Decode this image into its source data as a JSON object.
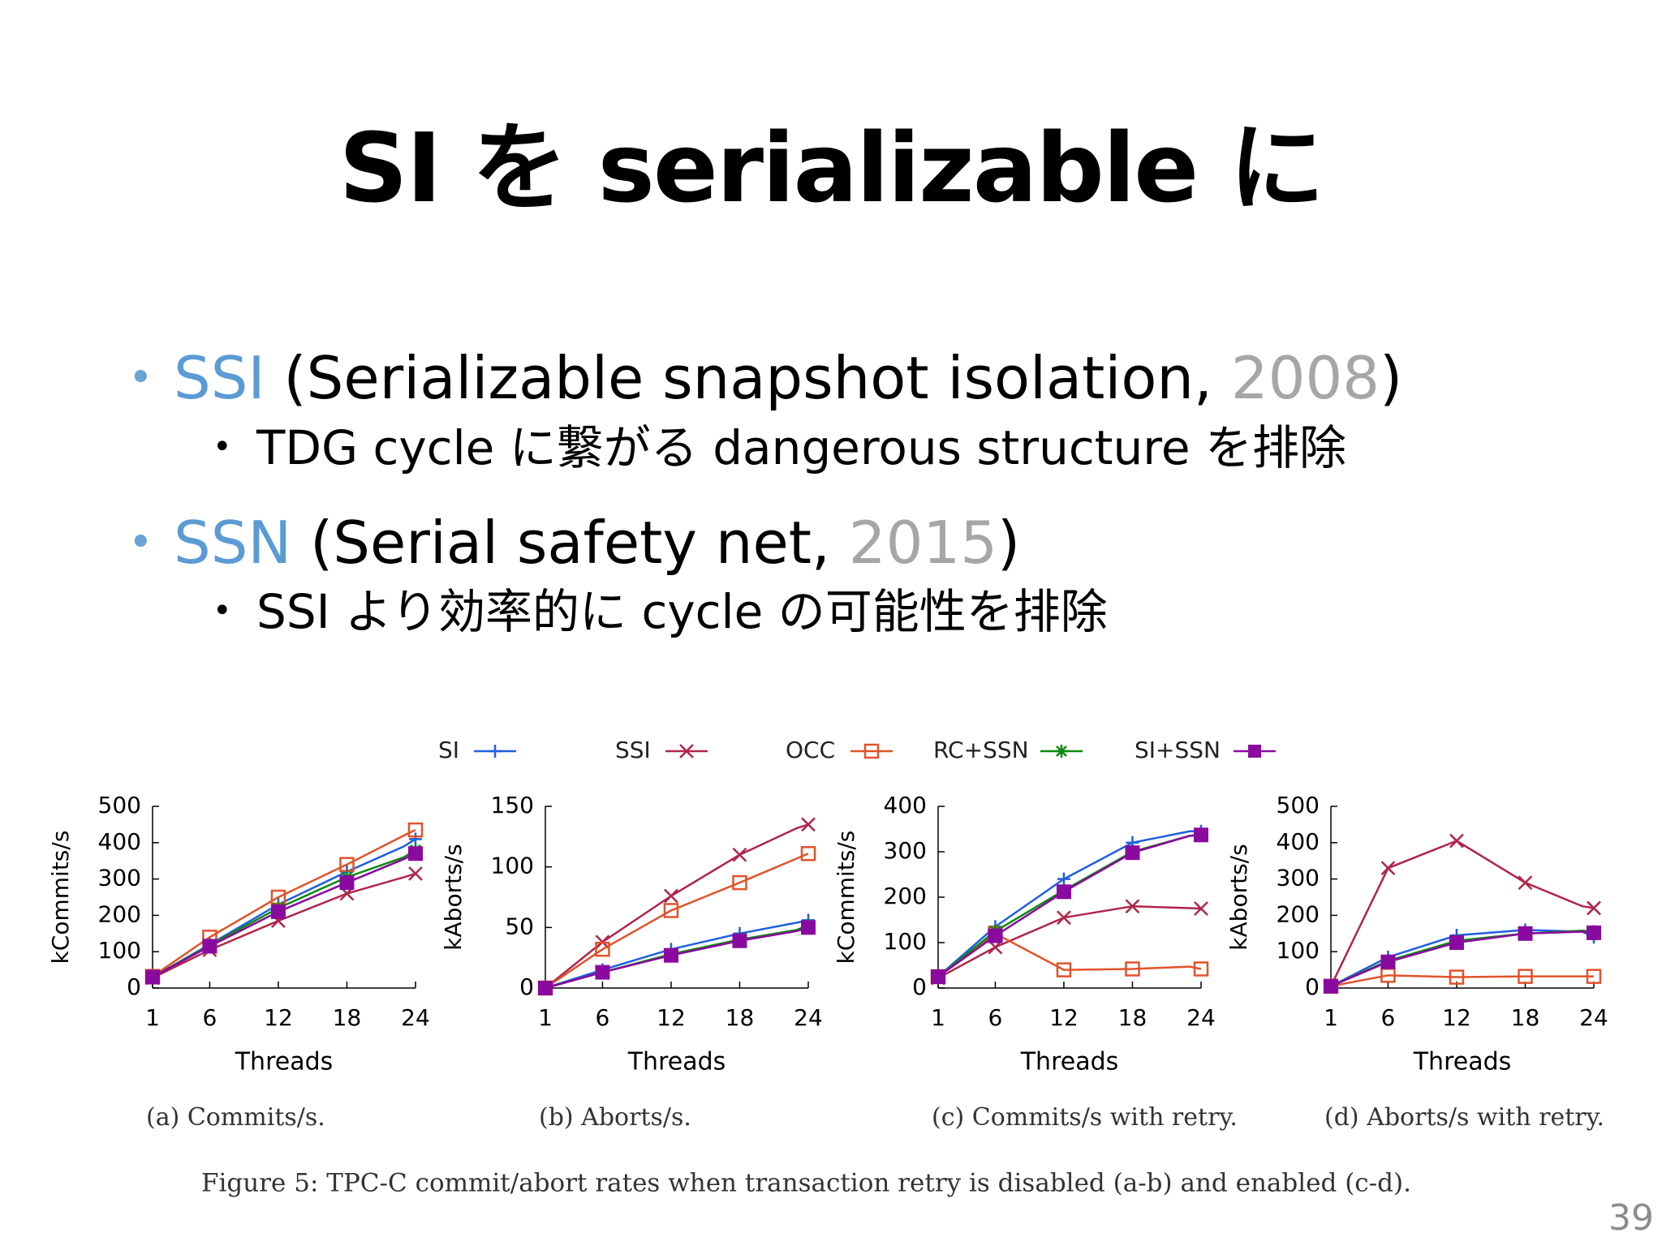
{
  "slide": {
    "title": "SI を serializable に",
    "bullets": [
      {
        "name": "SSI",
        "open": " (Serializable snapshot isolation, ",
        "year": "2008",
        "close": ")",
        "sub": "TDG cycle に繋がる dangerous structure を排除"
      },
      {
        "name": "SSN",
        "open": " (Serial safety net, ",
        "year": "2015",
        "close": ")",
        "sub": "SSI より効率的に cycle の可能性を排除"
      }
    ],
    "page_number": "39"
  },
  "colors": {
    "accent": "#5b9bd5",
    "year_gray": "#a6a6a6",
    "SI": "#1f5fe0",
    "SSI": "#b0264a",
    "OCC": "#e0532a",
    "RC+SSN": "#0b8a0b",
    "SI+SSN": "#8a0aa0"
  },
  "chart_data": {
    "legend": [
      {
        "name": "SI",
        "marker": "plus",
        "color": "#1f5fe0"
      },
      {
        "name": "SSI",
        "marker": "x",
        "color": "#b0264a"
      },
      {
        "name": "OCC",
        "marker": "square-open",
        "color": "#e0532a"
      },
      {
        "name": "RC+SSN",
        "marker": "star",
        "color": "#0b8a0b"
      },
      {
        "name": "SI+SSN",
        "marker": "square-filled",
        "color": "#8a0aa0"
      }
    ],
    "caption": "Figure 5: TPC-C commit/abort rates when transaction retry is disabled (a-b) and enabled (c-d).",
    "panels": [
      {
        "type": "line",
        "subcaption": "(a) Commits/s.",
        "xlabel": "Threads",
        "ylabel": "kCommits/s",
        "xticks": [
          1,
          6,
          12,
          18,
          24
        ],
        "yticks": [
          0,
          100,
          200,
          300,
          400,
          500
        ],
        "xlim": [
          1,
          24
        ],
        "ylim": [
          0,
          500
        ],
        "x": [
          1,
          6,
          12,
          18,
          23,
          24
        ],
        "series": [
          {
            "name": "SI",
            "values": [
              30,
              120,
              230,
              320,
              390,
              410
            ]
          },
          {
            "name": "SSI",
            "values": [
              28,
              105,
              185,
              260,
              305,
              315
            ]
          },
          {
            "name": "OCC",
            "values": [
              32,
              140,
              250,
              340,
              420,
              435
            ]
          },
          {
            "name": "RC+SSN",
            "values": [
              30,
              118,
              220,
              305,
              360,
              380
            ]
          },
          {
            "name": "SI+SSN",
            "values": [
              30,
              115,
              210,
              290,
              355,
              370
            ]
          }
        ]
      },
      {
        "type": "line",
        "subcaption": "(b) Aborts/s.",
        "xlabel": "Threads",
        "ylabel": "kAborts/s",
        "xticks": [
          1,
          6,
          12,
          18,
          24
        ],
        "yticks": [
          0,
          50,
          100,
          150
        ],
        "xlim": [
          1,
          24
        ],
        "ylim": [
          0,
          150
        ],
        "x": [
          1,
          6,
          12,
          18,
          23,
          24
        ],
        "series": [
          {
            "name": "SI",
            "values": [
              0,
              15,
              32,
              45,
              54,
              56
            ]
          },
          {
            "name": "SSI",
            "values": [
              0,
              38,
              76,
              110,
              132,
              135
            ]
          },
          {
            "name": "OCC",
            "values": [
              0,
              32,
              64,
              87,
              107,
              111
            ]
          },
          {
            "name": "RC+SSN",
            "values": [
              0,
              13,
              28,
              40,
              48,
              52
            ]
          },
          {
            "name": "SI+SSN",
            "values": [
              0,
              13,
              27,
              39,
              47,
              50
            ]
          }
        ]
      },
      {
        "type": "line",
        "subcaption": "(c) Commits/s with retry.",
        "xlabel": "Threads",
        "ylabel": "kCommits/s",
        "xticks": [
          1,
          6,
          12,
          18,
          24
        ],
        "yticks": [
          0,
          100,
          200,
          300,
          400
        ],
        "xlim": [
          1,
          24
        ],
        "ylim": [
          0,
          400
        ],
        "x": [
          1,
          6,
          12,
          18,
          23,
          24
        ],
        "series": [
          {
            "name": "SI",
            "values": [
              25,
              135,
              240,
              320,
              345,
              345
            ]
          },
          {
            "name": "SSI",
            "values": [
              22,
              90,
              155,
              180,
              176,
              175
            ]
          },
          {
            "name": "OCC",
            "values": [
              25,
              120,
              40,
              42,
              47,
              42
            ]
          },
          {
            "name": "RC+SSN",
            "values": [
              25,
              125,
              215,
              300,
              335,
              338
            ]
          },
          {
            "name": "SI+SSN",
            "values": [
              25,
              115,
              212,
              298,
              335,
              337
            ]
          }
        ]
      },
      {
        "type": "line",
        "subcaption": "(d) Aborts/s with retry.",
        "xlabel": "Threads",
        "ylabel": "kAborts/s",
        "xticks": [
          1,
          6,
          12,
          18,
          24
        ],
        "yticks": [
          0,
          100,
          200,
          300,
          400,
          500
        ],
        "xlim": [
          1,
          24
        ],
        "ylim": [
          0,
          500
        ],
        "x": [
          1,
          6,
          12,
          18,
          23,
          24
        ],
        "series": [
          {
            "name": "SI",
            "values": [
              5,
              85,
              145,
              160,
              155,
              140
            ]
          },
          {
            "name": "SSI",
            "values": [
              5,
              330,
              405,
              290,
              225,
              220
            ]
          },
          {
            "name": "OCC",
            "values": [
              5,
              35,
              30,
              32,
              32,
              32
            ]
          },
          {
            "name": "RC+SSN",
            "values": [
              5,
              75,
              130,
              150,
              158,
              155
            ]
          },
          {
            "name": "SI+SSN",
            "values": [
              5,
              72,
              125,
              150,
              155,
              152
            ]
          }
        ]
      }
    ]
  }
}
